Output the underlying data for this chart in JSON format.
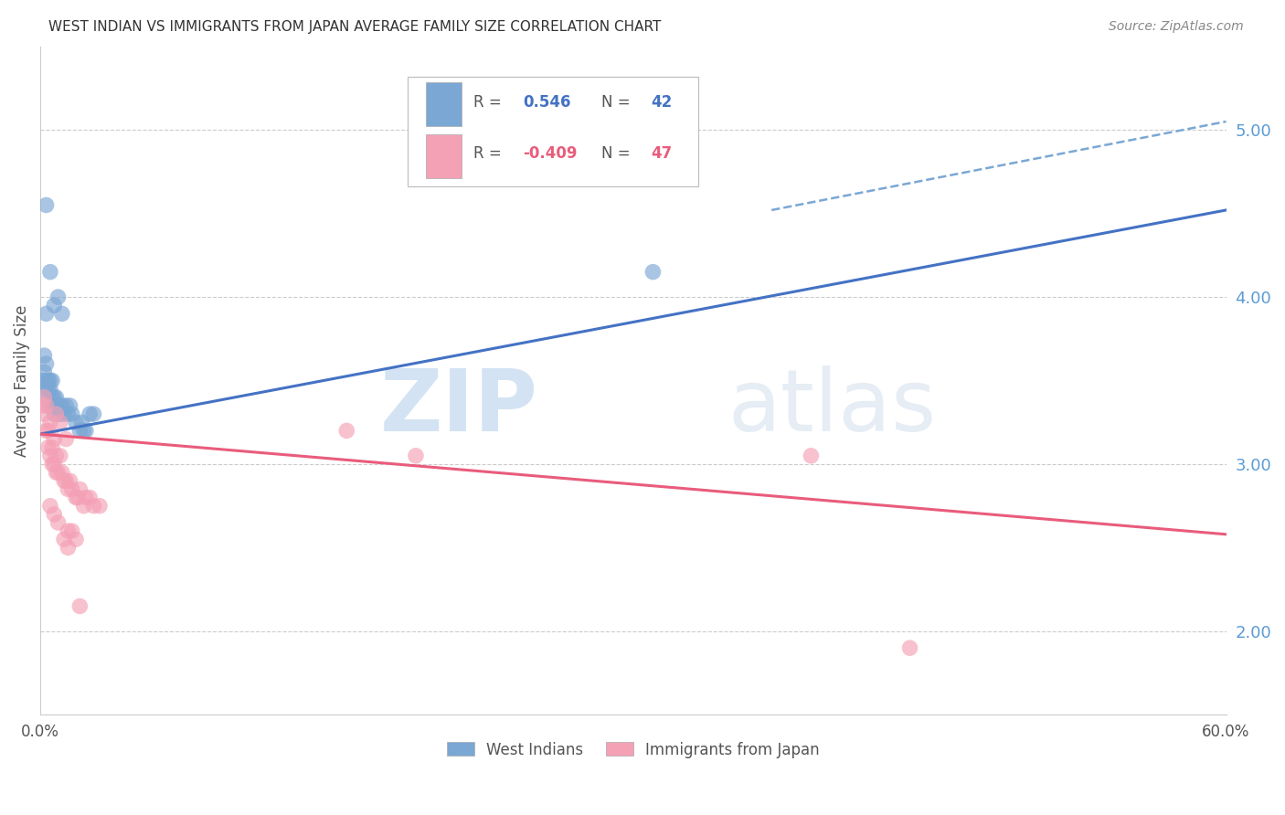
{
  "title": "WEST INDIAN VS IMMIGRANTS FROM JAPAN AVERAGE FAMILY SIZE CORRELATION CHART",
  "source": "Source: ZipAtlas.com",
  "ylabel": "Average Family Size",
  "right_yticks": [
    2.0,
    3.0,
    4.0,
    5.0
  ],
  "right_ytick_color": "#5b9bd5",
  "watermark_zip": "ZIP",
  "watermark_atlas": "atlas",
  "legend_label_blue": "West Indians",
  "legend_label_pink": "Immigrants from Japan",
  "blue_scatter_x": [
    0.001,
    0.002,
    0.002,
    0.003,
    0.003,
    0.003,
    0.004,
    0.004,
    0.004,
    0.005,
    0.005,
    0.005,
    0.006,
    0.006,
    0.006,
    0.007,
    0.007,
    0.008,
    0.008,
    0.009,
    0.01,
    0.01,
    0.011,
    0.012,
    0.013,
    0.014,
    0.015,
    0.016,
    0.018,
    0.02,
    0.021,
    0.022,
    0.023,
    0.025,
    0.027,
    0.003,
    0.005,
    0.007,
    0.009,
    0.011,
    0.31,
    0.003
  ],
  "blue_scatter_y": [
    3.5,
    3.55,
    3.65,
    3.45,
    3.5,
    3.6,
    3.4,
    3.45,
    3.5,
    3.35,
    3.45,
    3.5,
    3.35,
    3.4,
    3.5,
    3.3,
    3.4,
    3.35,
    3.4,
    3.3,
    3.3,
    3.35,
    3.35,
    3.3,
    3.35,
    3.3,
    3.35,
    3.3,
    3.25,
    3.2,
    3.25,
    3.2,
    3.2,
    3.3,
    3.3,
    3.9,
    4.15,
    3.95,
    4.0,
    3.9,
    4.15,
    4.55
  ],
  "pink_scatter_x": [
    0.001,
    0.002,
    0.002,
    0.003,
    0.003,
    0.004,
    0.004,
    0.005,
    0.005,
    0.006,
    0.006,
    0.007,
    0.007,
    0.008,
    0.008,
    0.009,
    0.01,
    0.011,
    0.012,
    0.013,
    0.014,
    0.015,
    0.016,
    0.018,
    0.019,
    0.02,
    0.022,
    0.023,
    0.025,
    0.027,
    0.008,
    0.01,
    0.013,
    0.155,
    0.19,
    0.39,
    0.005,
    0.007,
    0.009,
    0.014,
    0.016,
    0.018,
    0.44,
    0.02,
    0.012,
    0.014,
    0.03
  ],
  "pink_scatter_y": [
    3.35,
    3.3,
    3.4,
    3.2,
    3.35,
    3.1,
    3.2,
    3.05,
    3.25,
    3.0,
    3.1,
    3.0,
    3.15,
    2.95,
    3.05,
    2.95,
    3.05,
    2.95,
    2.9,
    2.9,
    2.85,
    2.9,
    2.85,
    2.8,
    2.8,
    2.85,
    2.75,
    2.8,
    2.8,
    2.75,
    3.3,
    3.25,
    3.15,
    3.2,
    3.05,
    3.05,
    2.75,
    2.7,
    2.65,
    2.6,
    2.6,
    2.55,
    1.9,
    2.15,
    2.55,
    2.5,
    2.75
  ],
  "blue_line_color": "#4472c4",
  "pink_line_color": "#e95c7b",
  "blue_scatter_color": "#7ba7d4",
  "pink_scatter_color": "#f4a0b5",
  "dashed_line_color": "#7ba7d4",
  "grid_color": "#cccccc",
  "background_color": "#ffffff",
  "xlim": [
    0.0,
    0.6
  ],
  "ylim": [
    1.5,
    5.5
  ],
  "blue_line_x": [
    0.0,
    0.6
  ],
  "blue_line_y": [
    3.18,
    4.52
  ],
  "pink_line_x": [
    0.0,
    0.6
  ],
  "pink_line_y": [
    3.18,
    2.58
  ],
  "dashed_line_x": [
    0.37,
    0.6
  ],
  "dashed_line_y": [
    4.52,
    5.05
  ]
}
